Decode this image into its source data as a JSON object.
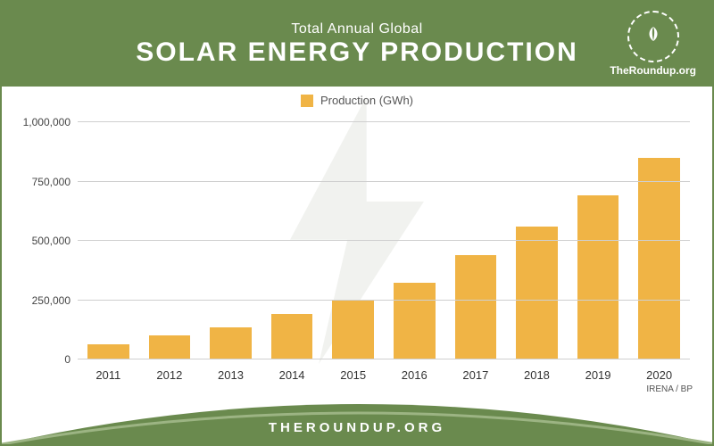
{
  "header": {
    "subtitle": "Total Annual Global",
    "title": "SOLAR ENERGY PRODUCTION",
    "brand_color": "#6a8a4e",
    "logo_text": "TheRoundup.org"
  },
  "chart": {
    "type": "bar",
    "legend_label": "Production (GWh)",
    "categories": [
      "2011",
      "2012",
      "2013",
      "2014",
      "2015",
      "2016",
      "2017",
      "2018",
      "2019",
      "2020"
    ],
    "values": [
      65000,
      100000,
      135000,
      190000,
      250000,
      325000,
      440000,
      560000,
      690000,
      850000
    ],
    "bar_color": "#f0b445",
    "ylim": [
      0,
      1000000
    ],
    "yticks": [
      0,
      250000,
      500000,
      750000,
      1000000
    ],
    "ytick_labels": [
      "0",
      "250,000",
      "500,000",
      "750,000",
      "1,000,000"
    ],
    "grid_color": "#cfcfcf",
    "background_color": "#ffffff",
    "bar_width": 0.68,
    "label_fontsize": 13,
    "bolt_color": "#7d8a6c",
    "bolt_opacity": 0.1
  },
  "source_text": "IRENA / BP",
  "footer_text": "THEROUNDUP.ORG"
}
